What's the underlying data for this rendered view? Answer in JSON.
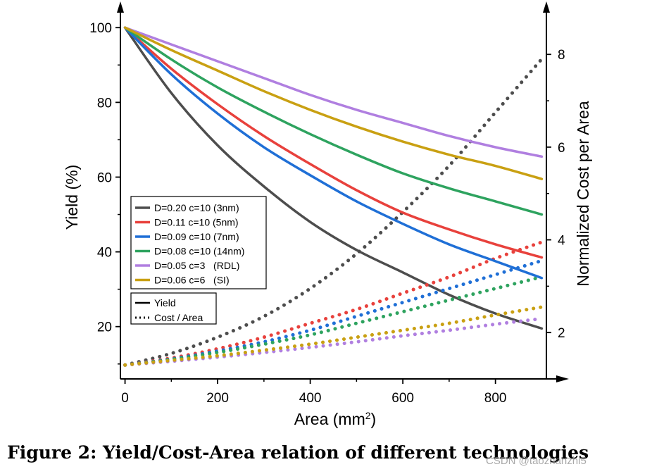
{
  "chart_data": {
    "type": "line",
    "xlabel": "Area (mm",
    "xlabel_sup": "2",
    "xlabel_end": ")",
    "ylabel": "Yield (%)",
    "y2label": "Normalized Cost per Area",
    "xlim": [
      -10,
      910
    ],
    "ylim": [
      6,
      104
    ],
    "y2lim": [
      1,
      8.9
    ],
    "xticks": [
      0,
      200,
      400,
      600,
      800
    ],
    "yticks": [
      20,
      40,
      60,
      80,
      100
    ],
    "y2ticks": [
      2,
      4,
      6,
      8
    ],
    "legend_position": "center-left",
    "series": [
      {
        "name": "D=0.20 c=10 (3nm)",
        "color": "#4d4d4d",
        "x": [
          0,
          100,
          200,
          300,
          400,
          500,
          600,
          700,
          800,
          900
        ],
        "yield": [
          100,
          82.5,
          68.5,
          57.5,
          48,
          40.5,
          34.5,
          28.5,
          23.5,
          19.5
        ],
        "cost_x": [
          0,
          100,
          200,
          300,
          400,
          500,
          600,
          700,
          800,
          900
        ],
        "cost": [
          1.3,
          1.55,
          1.9,
          2.35,
          2.95,
          3.7,
          4.6,
          5.6,
          6.75,
          7.9
        ]
      },
      {
        "name": "D=0.11 c=10 (5nm)",
        "color": "#e8413c",
        "x": [
          0,
          100,
          200,
          300,
          400,
          500,
          600,
          700,
          800,
          900
        ],
        "yield": [
          100,
          89,
          79.5,
          71,
          63.5,
          56.5,
          50.5,
          46,
          42,
          38.5
        ],
        "cost_x": [
          0,
          100,
          200,
          300,
          400,
          500,
          600,
          700,
          800,
          900
        ],
        "cost": [
          1.3,
          1.45,
          1.65,
          1.9,
          2.2,
          2.5,
          2.85,
          3.2,
          3.6,
          3.95
        ]
      },
      {
        "name": "D=0.09 c=10 (7nm)",
        "color": "#1f6fd6",
        "x": [
          0,
          100,
          200,
          300,
          400,
          500,
          600,
          700,
          800,
          900
        ],
        "yield": [
          100,
          87.5,
          77,
          68,
          60.5,
          53.5,
          47.5,
          42,
          37.5,
          33
        ],
        "cost_x": [
          0,
          100,
          200,
          300,
          400,
          500,
          600,
          700,
          800,
          900
        ],
        "cost": [
          1.3,
          1.43,
          1.6,
          1.8,
          2.05,
          2.35,
          2.65,
          2.95,
          3.25,
          3.55
        ]
      },
      {
        "name": "D=0.08 c=10 (14nm)",
        "color": "#2ea35f",
        "x": [
          0,
          100,
          200,
          300,
          400,
          500,
          600,
          700,
          800,
          900
        ],
        "yield": [
          100,
          91.5,
          84,
          77.5,
          71.5,
          66,
          61,
          57,
          53.5,
          50
        ],
        "cost_x": [
          0,
          100,
          200,
          300,
          400,
          500,
          600,
          700,
          800,
          900
        ],
        "cost": [
          1.3,
          1.42,
          1.57,
          1.75,
          1.95,
          2.2,
          2.45,
          2.7,
          2.95,
          3.2
        ]
      },
      {
        "name": "D=0.05 c=3   (RDL)",
        "color": "#b07fe0",
        "x": [
          0,
          100,
          200,
          300,
          400,
          500,
          600,
          700,
          800,
          900
        ],
        "yield": [
          100,
          95.5,
          91,
          86.5,
          82,
          78,
          74.5,
          71,
          68,
          65.5
        ],
        "cost_x": [
          0,
          100,
          200,
          300,
          400,
          500,
          600,
          700,
          800,
          900
        ],
        "cost": [
          1.3,
          1.38,
          1.47,
          1.57,
          1.68,
          1.8,
          1.93,
          2.05,
          2.18,
          2.3
        ]
      },
      {
        "name": "D=0.06 c=6   (SI)",
        "color": "#c9a012",
        "x": [
          0,
          100,
          200,
          300,
          400,
          500,
          600,
          700,
          800,
          900
        ],
        "yield": [
          100,
          94,
          88.5,
          83,
          78,
          73.5,
          69.5,
          66,
          63,
          59.5
        ],
        "cost_x": [
          0,
          100,
          200,
          300,
          400,
          500,
          600,
          700,
          800,
          900
        ],
        "cost": [
          1.3,
          1.4,
          1.5,
          1.62,
          1.75,
          1.9,
          2.05,
          2.2,
          2.38,
          2.55
        ]
      }
    ],
    "style_legend": [
      {
        "name": "Yield",
        "style": "solid"
      },
      {
        "name": "Cost / Area",
        "style": "dotted"
      }
    ]
  },
  "caption": "Figure 2: Yield/Cost-Area relation of different technologies",
  "watermark": "CSDN @taozhanzhi5"
}
